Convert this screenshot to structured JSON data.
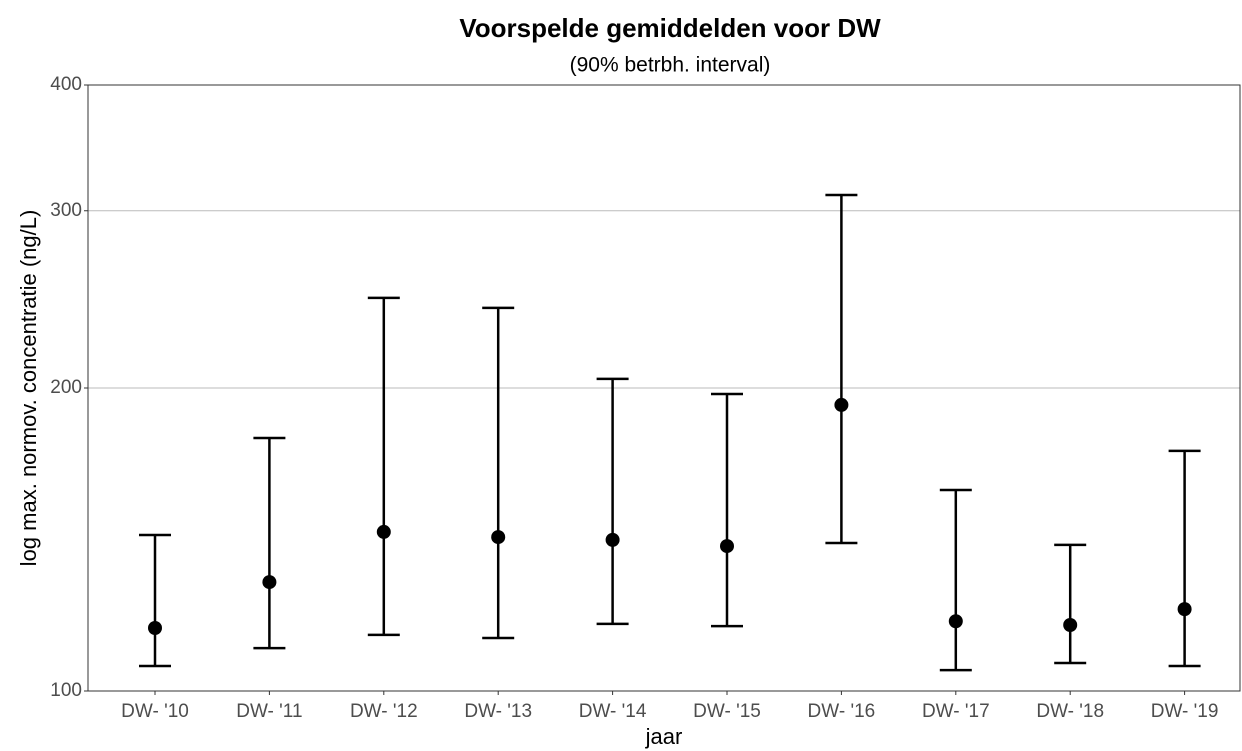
{
  "chart_data": {
    "type": "errorbar",
    "title": "Voorspelde gemiddelden voor DW",
    "subtitle": "(90% betrbh. interval)",
    "xlabel": "jaar",
    "ylabel": "log max. normov. concentratie (ng/L)",
    "categories": [
      "DW- '10",
      "DW- '11",
      "DW- '12",
      "DW- '13",
      "DW- '14",
      "DW- '15",
      "DW- '16",
      "DW- '17",
      "DW- '18",
      "DW- '19"
    ],
    "series": [
      {
        "color": "#000000",
        "values": [
          115.5,
          128.3,
          143.9,
          142.2,
          141.3,
          139.3,
          192.4,
          117.3,
          116.3,
          120.6
        ],
        "lower": [
          105.9,
          110.3,
          113.7,
          112.9,
          116.6,
          116.0,
          140.3,
          104.9,
          106.6,
          105.9
        ],
        "upper": [
          142.9,
          178.4,
          245.8,
          240.2,
          204.2,
          197.3,
          311.0,
          158.4,
          139.7,
          173.2
        ]
      }
    ],
    "ylim": [
      100,
      400
    ],
    "yticks": [
      100,
      200,
      300,
      400
    ],
    "log_scale": true,
    "grid": true
  }
}
